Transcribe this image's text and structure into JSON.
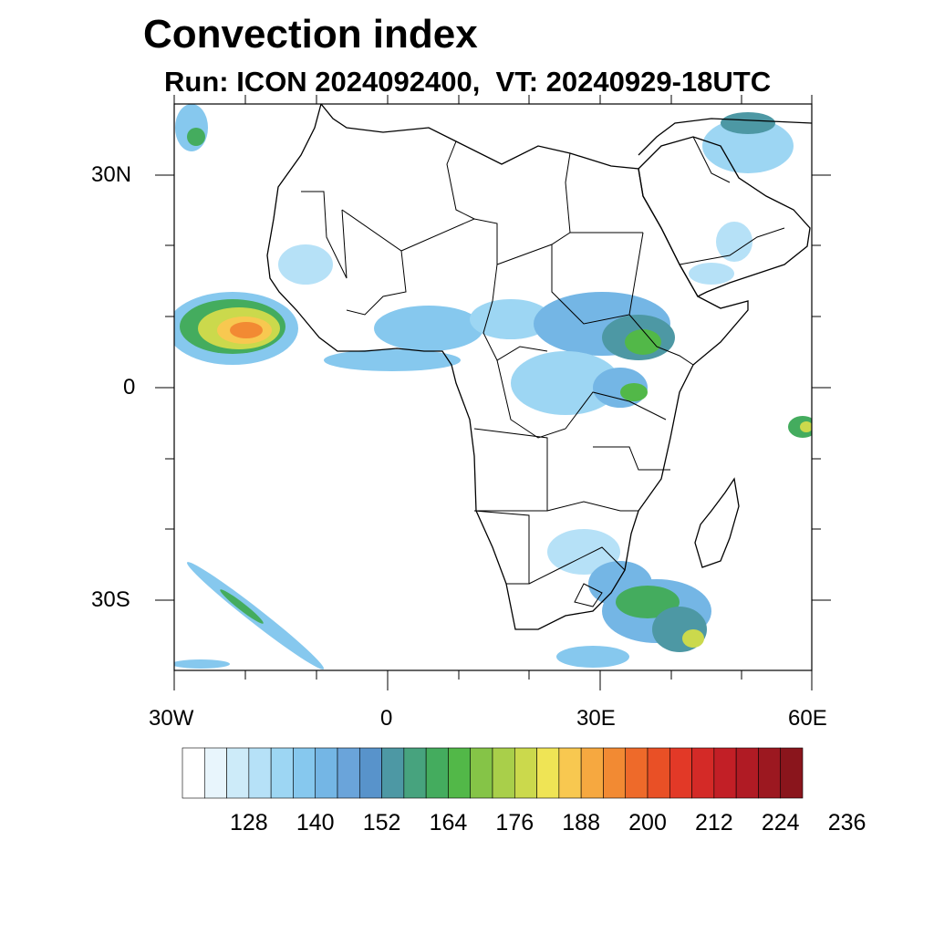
{
  "title": "Convection index",
  "subtitle": "Run: ICON 2024092400,  VT: 20240929-18UTC",
  "axes": {
    "lon_labels": [
      "30W",
      "0",
      "30E",
      "60E"
    ],
    "lat_labels": [
      "30N",
      "0",
      "30S"
    ]
  },
  "colorbar": {
    "labels": [
      "128",
      "140",
      "152",
      "164",
      "176",
      "188",
      "200",
      "212",
      "224",
      "236"
    ],
    "colors": [
      "#ffffff",
      "#e8f5fc",
      "#cdebf9",
      "#b6e1f7",
      "#9dd6f3",
      "#86c8ee",
      "#74b6e5",
      "#6aa4da",
      "#5893cb",
      "#4d98a4",
      "#47a37e",
      "#44ac5e",
      "#52b848",
      "#85c447",
      "#a9cf4a",
      "#cbd94c",
      "#efe455",
      "#f8c850",
      "#f6a840",
      "#f28a33",
      "#ee6a2a",
      "#e95026",
      "#e23927",
      "#d42a27",
      "#c21f26",
      "#b01b24",
      "#9c1820",
      "#8a151c"
    ]
  },
  "map_data": {
    "region": "Africa",
    "lon_range": [
      -30,
      60
    ],
    "lat_range": [
      -40,
      40
    ],
    "field": "Convection index"
  }
}
